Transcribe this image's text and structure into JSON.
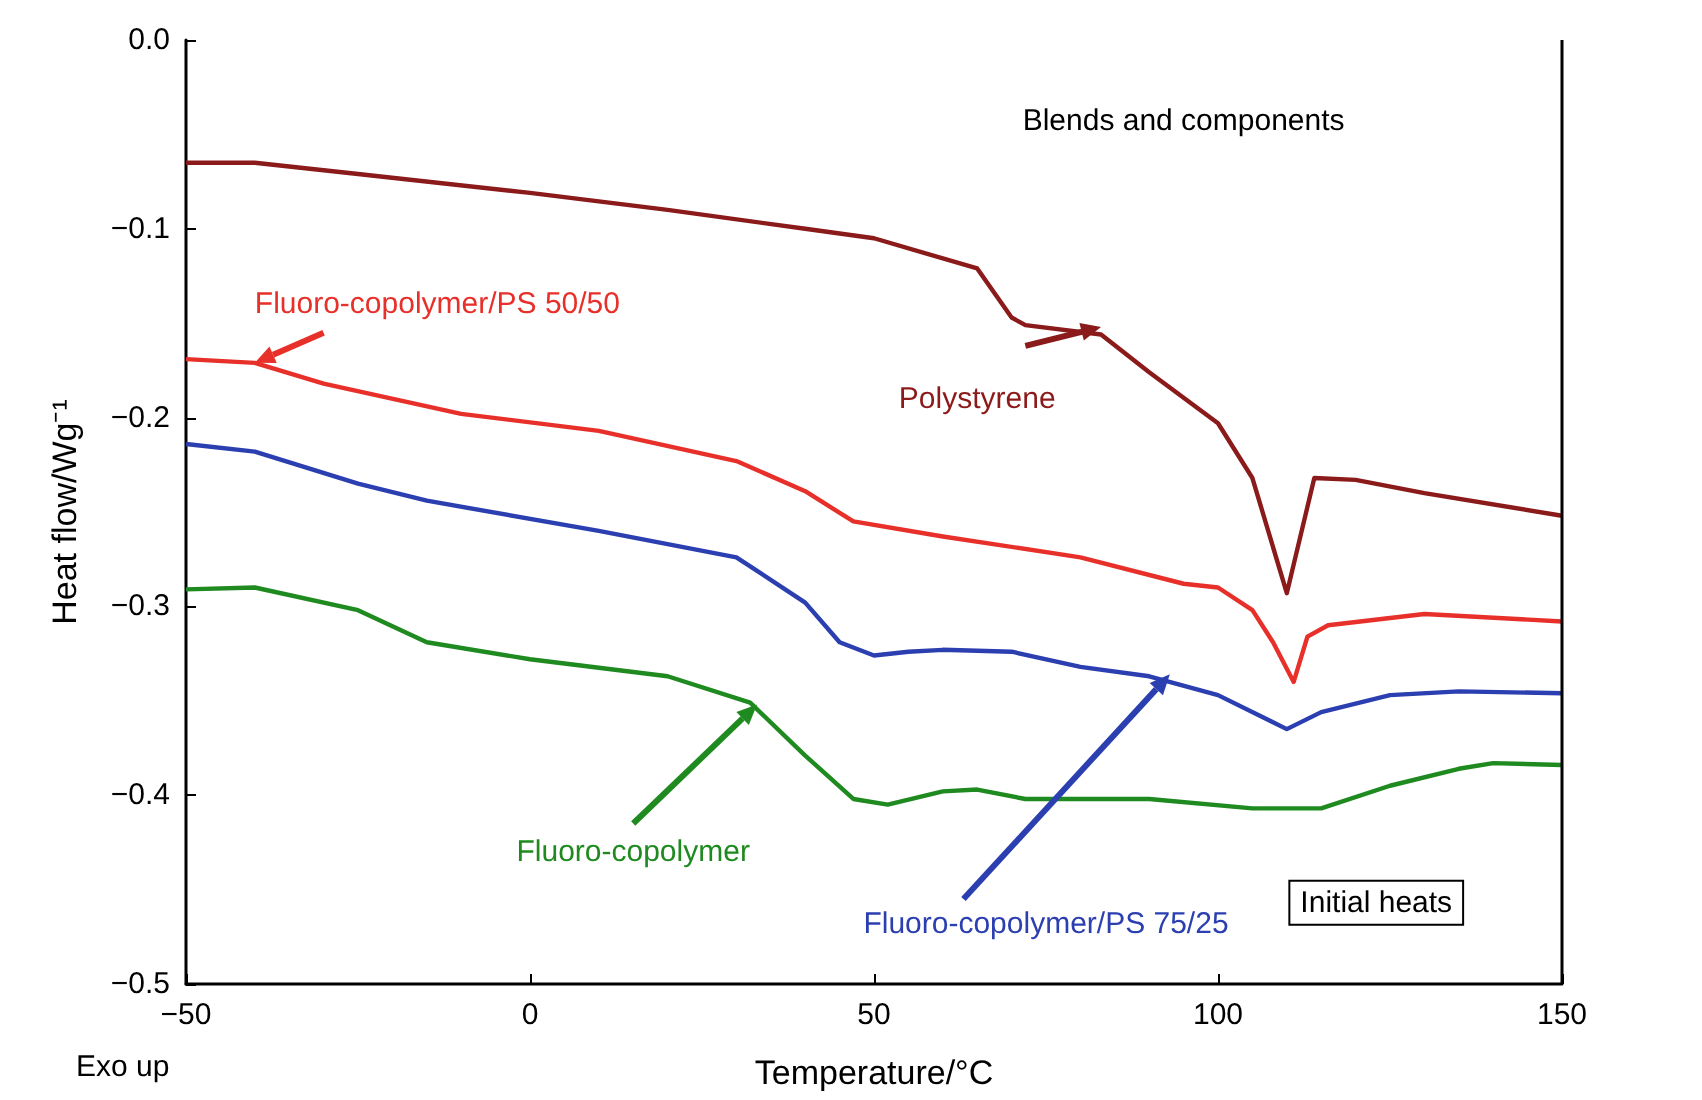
{
  "chart_data": {
    "type": "line",
    "xlabel": "Temperature/°C",
    "ylabel": "Heat flow/Wg⁻¹",
    "xlim": [
      -50,
      150
    ],
    "xticks": [
      {
        "value": -50,
        "label": "−50"
      },
      0,
      50,
      100,
      150
    ],
    "ylim": [
      -0.5,
      0
    ],
    "yticks": [
      {
        "value": -0.5,
        "label": "−0.5"
      },
      {
        "value": -0.4,
        "label": "−0.4"
      },
      {
        "value": -0.3,
        "label": "−0.3"
      },
      {
        "value": -0.2,
        "label": "−0.2"
      },
      {
        "value": -0.1,
        "label": "−0.1"
      },
      {
        "value": 0,
        "label": "0.0"
      }
    ],
    "grid": false,
    "marker": "none",
    "line_style": "solid",
    "annotations": [
      "Blends and components",
      "Initial heats",
      "Exo up"
    ],
    "series": [
      {
        "name": "Polystyrene",
        "color": "#8b1a1a",
        "x": [
          -50,
          -40,
          -25,
          0,
          20,
          40,
          50,
          65,
          70,
          72,
          83,
          90,
          100,
          105,
          110,
          114,
          120,
          130,
          150
        ],
        "values": [
          -0.065,
          -0.065,
          -0.071,
          -0.081,
          -0.09,
          -0.1,
          -0.105,
          -0.121,
          -0.147,
          -0.151,
          -0.156,
          -0.176,
          -0.203,
          -0.232,
          -0.293,
          -0.232,
          -0.233,
          -0.24,
          -0.252
        ]
      },
      {
        "name": "Fluoro-copolymer/PS 50/50",
        "color": "#e8302a",
        "x": [
          -50,
          -40,
          -30,
          -10,
          10,
          30,
          40,
          47,
          60,
          80,
          95,
          100,
          105,
          108,
          111,
          113,
          116,
          130,
          150
        ],
        "values": [
          -0.169,
          -0.171,
          -0.182,
          -0.198,
          -0.207,
          -0.223,
          -0.239,
          -0.255,
          -0.263,
          -0.274,
          -0.288,
          -0.29,
          -0.302,
          -0.319,
          -0.34,
          -0.316,
          -0.31,
          -0.304,
          -0.308
        ]
      },
      {
        "name": "Fluoro-copolymer/PS 75/25",
        "color": "#2b3fb0",
        "x": [
          -50,
          -40,
          -25,
          -15,
          10,
          30,
          40,
          45,
          50,
          55,
          60,
          70,
          80,
          90,
          100,
          110,
          115,
          125,
          135,
          150
        ],
        "values": [
          -0.214,
          -0.218,
          -0.235,
          -0.244,
          -0.26,
          -0.274,
          -0.298,
          -0.319,
          -0.326,
          -0.324,
          -0.323,
          -0.324,
          -0.332,
          -0.337,
          -0.347,
          -0.365,
          -0.356,
          -0.347,
          -0.345,
          -0.346
        ]
      },
      {
        "name": "Fluoro-copolymer",
        "color": "#1f8a1f",
        "x": [
          -50,
          -40,
          -25,
          -15,
          0,
          20,
          32,
          40,
          47,
          52,
          60,
          65,
          72,
          90,
          105,
          115,
          125,
          135,
          140,
          150
        ],
        "values": [
          -0.291,
          -0.29,
          -0.302,
          -0.319,
          -0.328,
          -0.337,
          -0.351,
          -0.379,
          -0.402,
          -0.405,
          -0.398,
          -0.397,
          -0.402,
          -0.402,
          -0.407,
          -0.407,
          -0.395,
          -0.386,
          -0.383,
          -0.384
        ]
      }
    ]
  }
}
